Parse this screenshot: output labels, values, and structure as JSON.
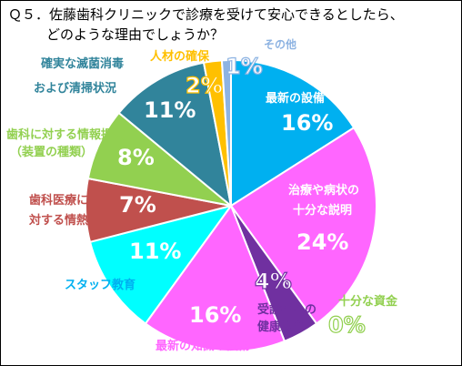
{
  "title_lines": [
    "Ｑ５．佐藤歯科クリニックで診療を受けて安心できるとしたら、",
    "どのような理由でしょうか？"
  ],
  "chart_data": {
    "type": "pie",
    "start": "12 o'clock, clockwise",
    "slices": [
      {
        "label": "最新の設備",
        "value": 16,
        "pct_label": "16%",
        "color": "#00b0f0"
      },
      {
        "label": "治療や病状の十分な説明",
        "value": 24,
        "pct_label": "24%",
        "color": "#ff66ff"
      },
      {
        "label": "十分な資金",
        "value": 0,
        "pct_label": "0%",
        "color": "#92d050"
      },
      {
        "label": "受診者への健康教育",
        "value": 4,
        "pct_label": "4%",
        "color": "#7030a0"
      },
      {
        "label": "最新の知識や技術",
        "value": 16,
        "pct_label": "16%",
        "color": "#ff66ff"
      },
      {
        "label": "スタッフ教育",
        "value": 11,
        "pct_label": "11%",
        "color": "#00ffff"
      },
      {
        "label": "歯科医療に対する情熱",
        "value": 7,
        "pct_label": "7%",
        "color": "#c0504d"
      },
      {
        "label": "歯科に対する情報提供（装置の種類）",
        "value": 8,
        "pct_label": "8%",
        "color": "#92d050"
      },
      {
        "label": "確実な滅菌消毒および清掃状況",
        "value": 11,
        "pct_label": "11%",
        "color": "#31849b"
      },
      {
        "label": "人材の確保",
        "value": 2,
        "pct_label": "2%",
        "color": "#ffc000"
      },
      {
        "label": "その他",
        "value": 1,
        "pct_label": "1%",
        "color": "#8db3e2"
      }
    ]
  }
}
